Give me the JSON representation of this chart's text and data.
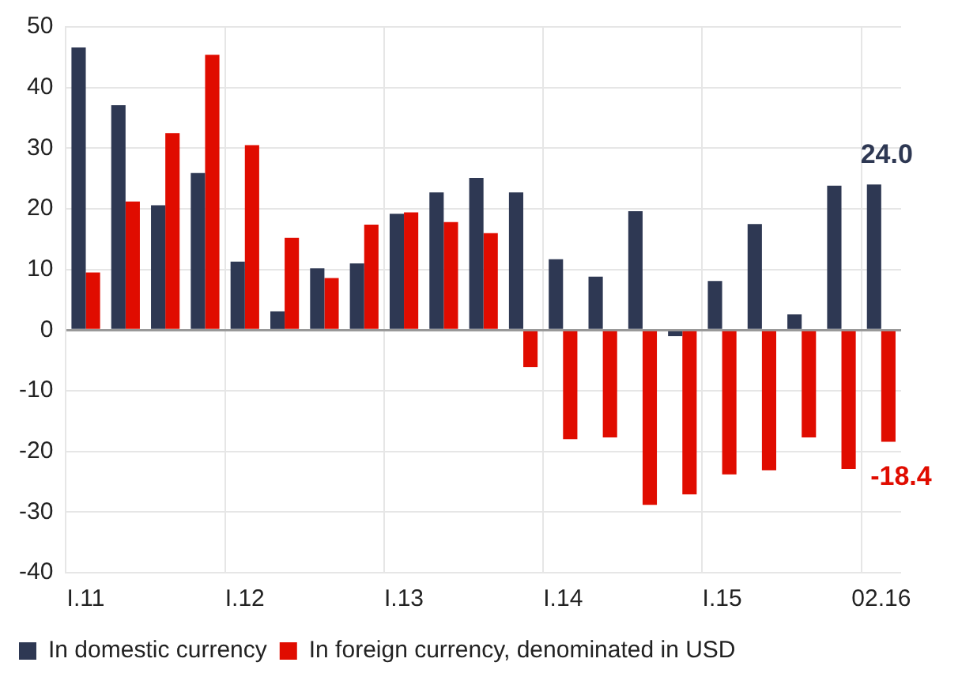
{
  "chart_data": {
    "type": "bar",
    "categories": [
      "I.11",
      null,
      null,
      null,
      "I.12",
      null,
      null,
      null,
      "I.13",
      null,
      null,
      null,
      "I.14",
      null,
      null,
      null,
      "I.15",
      null,
      null,
      null,
      "02.16"
    ],
    "series": [
      {
        "name": "In domestic currency",
        "color": "#2e3853",
        "values": [
          46.6,
          37.1,
          20.6,
          25.9,
          11.3,
          3.1,
          10.2,
          11.0,
          19.2,
          22.7,
          25.1,
          22.7,
          11.7,
          8.8,
          19.6,
          -1.0,
          8.1,
          17.5,
          2.6,
          23.8,
          24.0
        ],
        "value_labels": [
          null,
          null,
          null,
          null,
          null,
          null,
          null,
          null,
          null,
          null,
          null,
          null,
          null,
          null,
          null,
          null,
          null,
          null,
          null,
          null,
          "24.0"
        ]
      },
      {
        "name": "In foreign currency, denominated in USD",
        "color": "#e00c00",
        "values": [
          9.5,
          21.2,
          32.5,
          45.4,
          30.5,
          15.2,
          8.6,
          17.4,
          19.4,
          17.8,
          16.0,
          -6.1,
          -18.0,
          -17.7,
          -28.8,
          -27.1,
          -23.8,
          -23.1,
          -17.7,
          -22.9,
          -18.4
        ],
        "value_labels": [
          null,
          null,
          null,
          null,
          null,
          null,
          null,
          null,
          null,
          null,
          null,
          null,
          null,
          null,
          null,
          null,
          null,
          null,
          null,
          null,
          "-18.4"
        ]
      }
    ],
    "ylim": [
      -40,
      50
    ],
    "yticks": [
      -40,
      -30,
      -20,
      -10,
      0,
      10,
      20,
      30,
      40,
      50
    ],
    "grid": true,
    "legend": "bottom"
  }
}
